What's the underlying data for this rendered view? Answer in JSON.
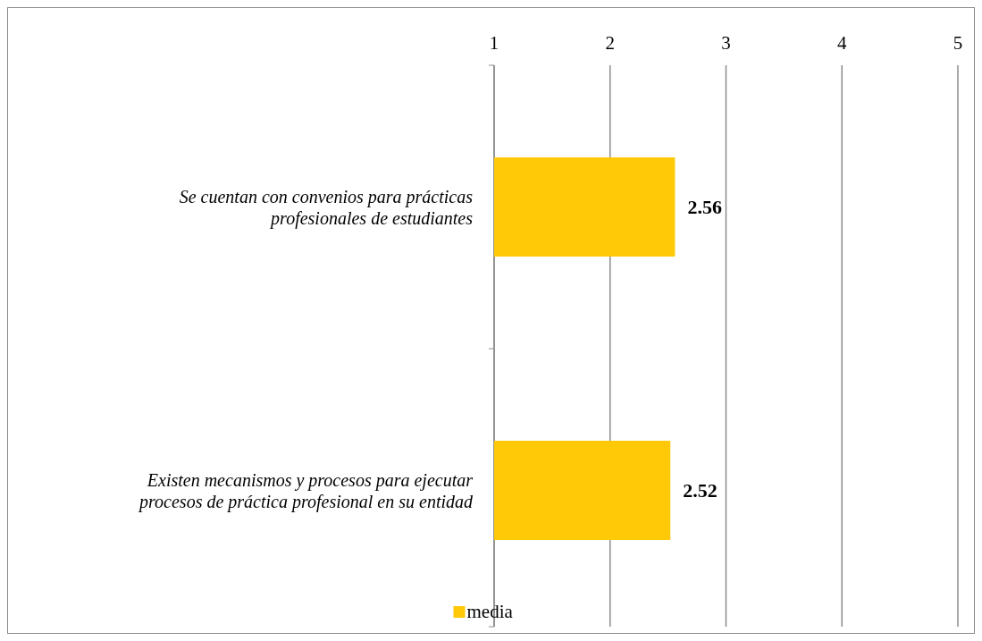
{
  "chart_data": {
    "type": "bar",
    "orientation": "horizontal",
    "categories": [
      "Se cuentan con convenios para prácticas profesionales de estudiantes",
      "Existen mecanismos y procesos para ejecutar procesos de práctica profesional en su entidad"
    ],
    "series": [
      {
        "name": "media",
        "color": "#ffc907",
        "values": [
          2.56,
          2.52
        ]
      }
    ],
    "xlim": [
      1,
      5
    ],
    "xticks": [
      1,
      2,
      3,
      4,
      5
    ],
    "grid": "x",
    "data_labels": true,
    "legend": "bottom"
  }
}
